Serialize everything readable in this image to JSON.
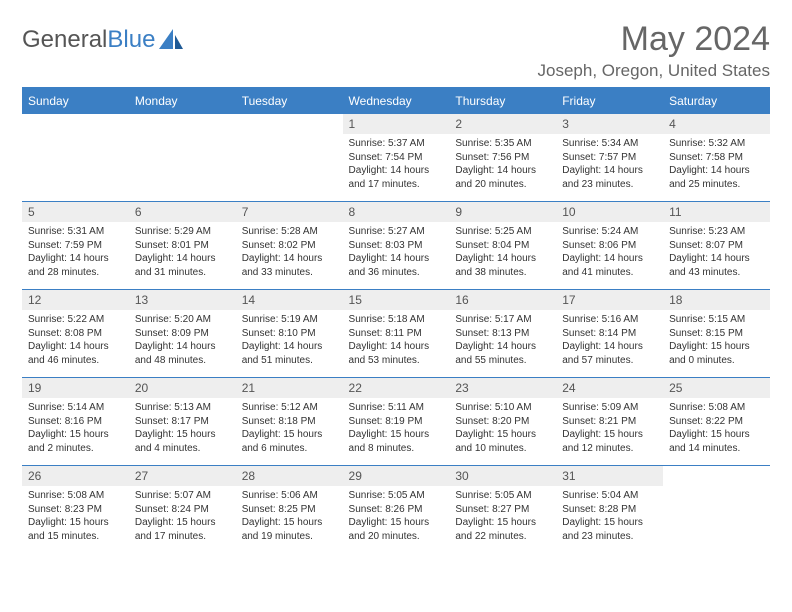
{
  "brand": {
    "part1": "General",
    "part2": "Blue"
  },
  "title": "May 2024",
  "location": "Joseph, Oregon, United States",
  "colors": {
    "header_bg": "#3b7fc4",
    "header_text": "#ffffff",
    "daynum_bg": "#eeeeee",
    "border": "#3b7fc4",
    "title_color": "#666666",
    "body_text": "#333333",
    "page_bg": "#ffffff"
  },
  "weekdays": [
    "Sunday",
    "Monday",
    "Tuesday",
    "Wednesday",
    "Thursday",
    "Friday",
    "Saturday"
  ],
  "weeks": [
    [
      null,
      null,
      null,
      {
        "n": "1",
        "sr": "Sunrise: 5:37 AM",
        "ss": "Sunset: 7:54 PM",
        "d1": "Daylight: 14 hours",
        "d2": "and 17 minutes."
      },
      {
        "n": "2",
        "sr": "Sunrise: 5:35 AM",
        "ss": "Sunset: 7:56 PM",
        "d1": "Daylight: 14 hours",
        "d2": "and 20 minutes."
      },
      {
        "n": "3",
        "sr": "Sunrise: 5:34 AM",
        "ss": "Sunset: 7:57 PM",
        "d1": "Daylight: 14 hours",
        "d2": "and 23 minutes."
      },
      {
        "n": "4",
        "sr": "Sunrise: 5:32 AM",
        "ss": "Sunset: 7:58 PM",
        "d1": "Daylight: 14 hours",
        "d2": "and 25 minutes."
      }
    ],
    [
      {
        "n": "5",
        "sr": "Sunrise: 5:31 AM",
        "ss": "Sunset: 7:59 PM",
        "d1": "Daylight: 14 hours",
        "d2": "and 28 minutes."
      },
      {
        "n": "6",
        "sr": "Sunrise: 5:29 AM",
        "ss": "Sunset: 8:01 PM",
        "d1": "Daylight: 14 hours",
        "d2": "and 31 minutes."
      },
      {
        "n": "7",
        "sr": "Sunrise: 5:28 AM",
        "ss": "Sunset: 8:02 PM",
        "d1": "Daylight: 14 hours",
        "d2": "and 33 minutes."
      },
      {
        "n": "8",
        "sr": "Sunrise: 5:27 AM",
        "ss": "Sunset: 8:03 PM",
        "d1": "Daylight: 14 hours",
        "d2": "and 36 minutes."
      },
      {
        "n": "9",
        "sr": "Sunrise: 5:25 AM",
        "ss": "Sunset: 8:04 PM",
        "d1": "Daylight: 14 hours",
        "d2": "and 38 minutes."
      },
      {
        "n": "10",
        "sr": "Sunrise: 5:24 AM",
        "ss": "Sunset: 8:06 PM",
        "d1": "Daylight: 14 hours",
        "d2": "and 41 minutes."
      },
      {
        "n": "11",
        "sr": "Sunrise: 5:23 AM",
        "ss": "Sunset: 8:07 PM",
        "d1": "Daylight: 14 hours",
        "d2": "and 43 minutes."
      }
    ],
    [
      {
        "n": "12",
        "sr": "Sunrise: 5:22 AM",
        "ss": "Sunset: 8:08 PM",
        "d1": "Daylight: 14 hours",
        "d2": "and 46 minutes."
      },
      {
        "n": "13",
        "sr": "Sunrise: 5:20 AM",
        "ss": "Sunset: 8:09 PM",
        "d1": "Daylight: 14 hours",
        "d2": "and 48 minutes."
      },
      {
        "n": "14",
        "sr": "Sunrise: 5:19 AM",
        "ss": "Sunset: 8:10 PM",
        "d1": "Daylight: 14 hours",
        "d2": "and 51 minutes."
      },
      {
        "n": "15",
        "sr": "Sunrise: 5:18 AM",
        "ss": "Sunset: 8:11 PM",
        "d1": "Daylight: 14 hours",
        "d2": "and 53 minutes."
      },
      {
        "n": "16",
        "sr": "Sunrise: 5:17 AM",
        "ss": "Sunset: 8:13 PM",
        "d1": "Daylight: 14 hours",
        "d2": "and 55 minutes."
      },
      {
        "n": "17",
        "sr": "Sunrise: 5:16 AM",
        "ss": "Sunset: 8:14 PM",
        "d1": "Daylight: 14 hours",
        "d2": "and 57 minutes."
      },
      {
        "n": "18",
        "sr": "Sunrise: 5:15 AM",
        "ss": "Sunset: 8:15 PM",
        "d1": "Daylight: 15 hours",
        "d2": "and 0 minutes."
      }
    ],
    [
      {
        "n": "19",
        "sr": "Sunrise: 5:14 AM",
        "ss": "Sunset: 8:16 PM",
        "d1": "Daylight: 15 hours",
        "d2": "and 2 minutes."
      },
      {
        "n": "20",
        "sr": "Sunrise: 5:13 AM",
        "ss": "Sunset: 8:17 PM",
        "d1": "Daylight: 15 hours",
        "d2": "and 4 minutes."
      },
      {
        "n": "21",
        "sr": "Sunrise: 5:12 AM",
        "ss": "Sunset: 8:18 PM",
        "d1": "Daylight: 15 hours",
        "d2": "and 6 minutes."
      },
      {
        "n": "22",
        "sr": "Sunrise: 5:11 AM",
        "ss": "Sunset: 8:19 PM",
        "d1": "Daylight: 15 hours",
        "d2": "and 8 minutes."
      },
      {
        "n": "23",
        "sr": "Sunrise: 5:10 AM",
        "ss": "Sunset: 8:20 PM",
        "d1": "Daylight: 15 hours",
        "d2": "and 10 minutes."
      },
      {
        "n": "24",
        "sr": "Sunrise: 5:09 AM",
        "ss": "Sunset: 8:21 PM",
        "d1": "Daylight: 15 hours",
        "d2": "and 12 minutes."
      },
      {
        "n": "25",
        "sr": "Sunrise: 5:08 AM",
        "ss": "Sunset: 8:22 PM",
        "d1": "Daylight: 15 hours",
        "d2": "and 14 minutes."
      }
    ],
    [
      {
        "n": "26",
        "sr": "Sunrise: 5:08 AM",
        "ss": "Sunset: 8:23 PM",
        "d1": "Daylight: 15 hours",
        "d2": "and 15 minutes."
      },
      {
        "n": "27",
        "sr": "Sunrise: 5:07 AM",
        "ss": "Sunset: 8:24 PM",
        "d1": "Daylight: 15 hours",
        "d2": "and 17 minutes."
      },
      {
        "n": "28",
        "sr": "Sunrise: 5:06 AM",
        "ss": "Sunset: 8:25 PM",
        "d1": "Daylight: 15 hours",
        "d2": "and 19 minutes."
      },
      {
        "n": "29",
        "sr": "Sunrise: 5:05 AM",
        "ss": "Sunset: 8:26 PM",
        "d1": "Daylight: 15 hours",
        "d2": "and 20 minutes."
      },
      {
        "n": "30",
        "sr": "Sunrise: 5:05 AM",
        "ss": "Sunset: 8:27 PM",
        "d1": "Daylight: 15 hours",
        "d2": "and 22 minutes."
      },
      {
        "n": "31",
        "sr": "Sunrise: 5:04 AM",
        "ss": "Sunset: 8:28 PM",
        "d1": "Daylight: 15 hours",
        "d2": "and 23 minutes."
      },
      null
    ]
  ]
}
